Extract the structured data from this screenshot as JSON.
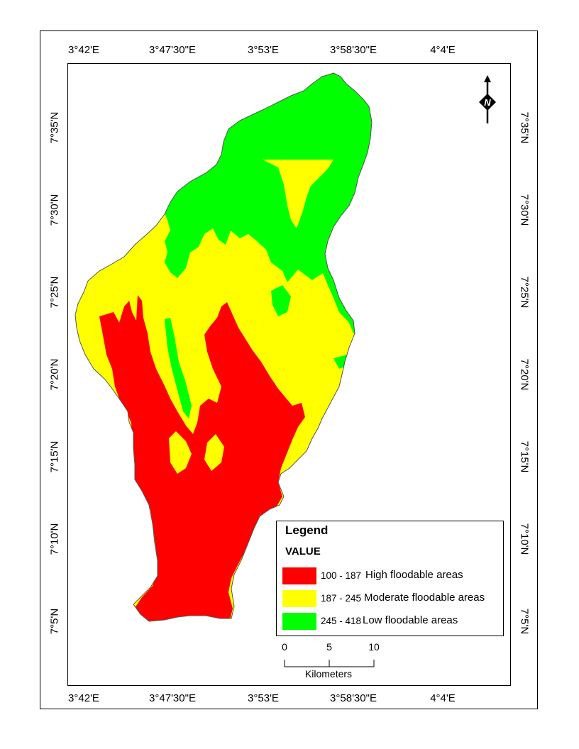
{
  "map": {
    "top_ticks": [
      "3°42'E",
      "3°47'30\"E",
      "3°53'E",
      "3°58'30\"E",
      "4°4'E"
    ],
    "bottom_ticks": [
      "3°42'E",
      "3°47'30\"E",
      "3°53'E",
      "3°58'30\"E",
      "4°4'E"
    ],
    "left_ticks": [
      "7°35'N",
      "7°30'N",
      "7°25'N",
      "7°20'N",
      "7°15'N",
      "7°10'N",
      "7°5'N"
    ],
    "right_ticks": [
      "7°35'N",
      "7°30'N",
      "7°25'N",
      "7°20'N",
      "7°15'N",
      "7°10'N",
      "7°5'N"
    ],
    "colors": {
      "high": "#ff0000",
      "moderate": "#ffff00",
      "low": "#00ff00"
    }
  },
  "legend": {
    "title": "Legend",
    "field": "VALUE",
    "items": [
      {
        "range": "100 - 187",
        "label": "High floodable areas",
        "color": "#ff0000"
      },
      {
        "range": "187 - 245",
        "label": "Moderate floodable areas",
        "color": "#ffff00"
      },
      {
        "range": "245 - 418",
        "label": "Low floodable areas",
        "color": "#00ff00"
      }
    ]
  },
  "scalebar": {
    "labels": [
      "0",
      "5",
      "10"
    ],
    "unit": "Kilometers"
  },
  "north_arrow": {
    "label": "N",
    "icon": "north-arrow-icon"
  }
}
